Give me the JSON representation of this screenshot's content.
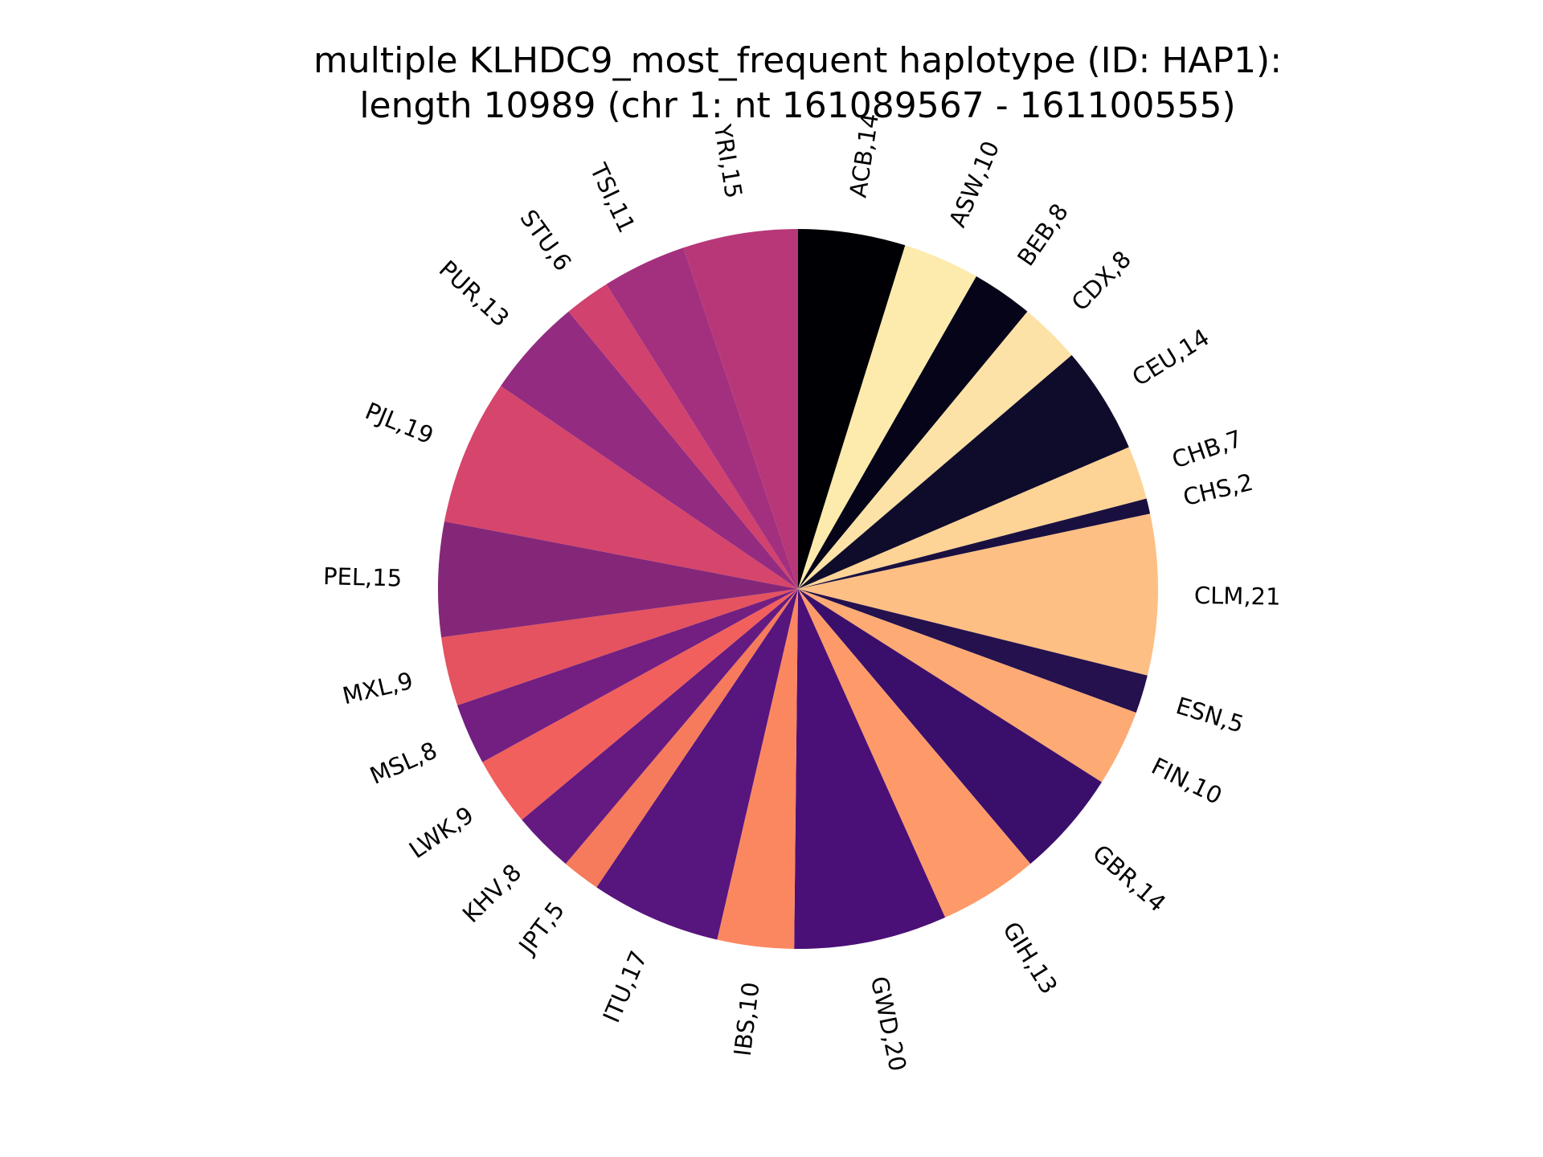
{
  "chart_data": {
    "type": "pie",
    "title_lines": [
      "multiple KLHDC9_most_frequent haplotype (ID: HAP1):",
      "length 10989 (chr 1: nt 161089567 - 161100555)"
    ],
    "start_angle": "top, clockwise",
    "slices": [
      {
        "label": "ACB,14",
        "value": 14,
        "color": "#000004"
      },
      {
        "label": "ASW,10",
        "value": 10,
        "color": "#fcebad"
      },
      {
        "label": "BEB,8",
        "value": 8,
        "color": "#050418"
      },
      {
        "label": "CDX,8",
        "value": 8,
        "color": "#fce2a6"
      },
      {
        "label": "CEU,14",
        "value": 14,
        "color": "#0f0c2b"
      },
      {
        "label": "CHB,7",
        "value": 7,
        "color": "#fdd496"
      },
      {
        "label": "CHS,2",
        "value": 2,
        "color": "#1a1040"
      },
      {
        "label": "CLM,21",
        "value": 21,
        "color": "#fdbf84"
      },
      {
        "label": "ESN,5",
        "value": 5,
        "color": "#24114e"
      },
      {
        "label": "FIN,10",
        "value": 10,
        "color": "#feaa74"
      },
      {
        "label": "GBR,14",
        "value": 14,
        "color": "#3a0f6b"
      },
      {
        "label": "GIH,13",
        "value": 13,
        "color": "#fe9a69"
      },
      {
        "label": "GWD,20",
        "value": 20,
        "color": "#4a1077"
      },
      {
        "label": "IBS,10",
        "value": 10,
        "color": "#fb8761"
      },
      {
        "label": "ITU,17",
        "value": 17,
        "color": "#57157e"
      },
      {
        "label": "JPT,5",
        "value": 5,
        "color": "#f67a5c"
      },
      {
        "label": "KHV,8",
        "value": 8,
        "color": "#641a80"
      },
      {
        "label": "LWK,9",
        "value": 9,
        "color": "#f1605d"
      },
      {
        "label": "MSL,8",
        "value": 8,
        "color": "#721f81"
      },
      {
        "label": "MXL,9",
        "value": 9,
        "color": "#e4535f"
      },
      {
        "label": "PEL,15",
        "value": 15,
        "color": "#852779"
      },
      {
        "label": "PJL,19",
        "value": 19,
        "color": "#d6456c"
      },
      {
        "label": "PUR,13",
        "value": 13,
        "color": "#932b80"
      },
      {
        "label": "STU,6",
        "value": 6,
        "color": "#d1426e"
      },
      {
        "label": "TSI,11",
        "value": 11,
        "color": "#a3307e"
      },
      {
        "label": "YRI,15",
        "value": 15,
        "color": "#b73779"
      }
    ]
  }
}
